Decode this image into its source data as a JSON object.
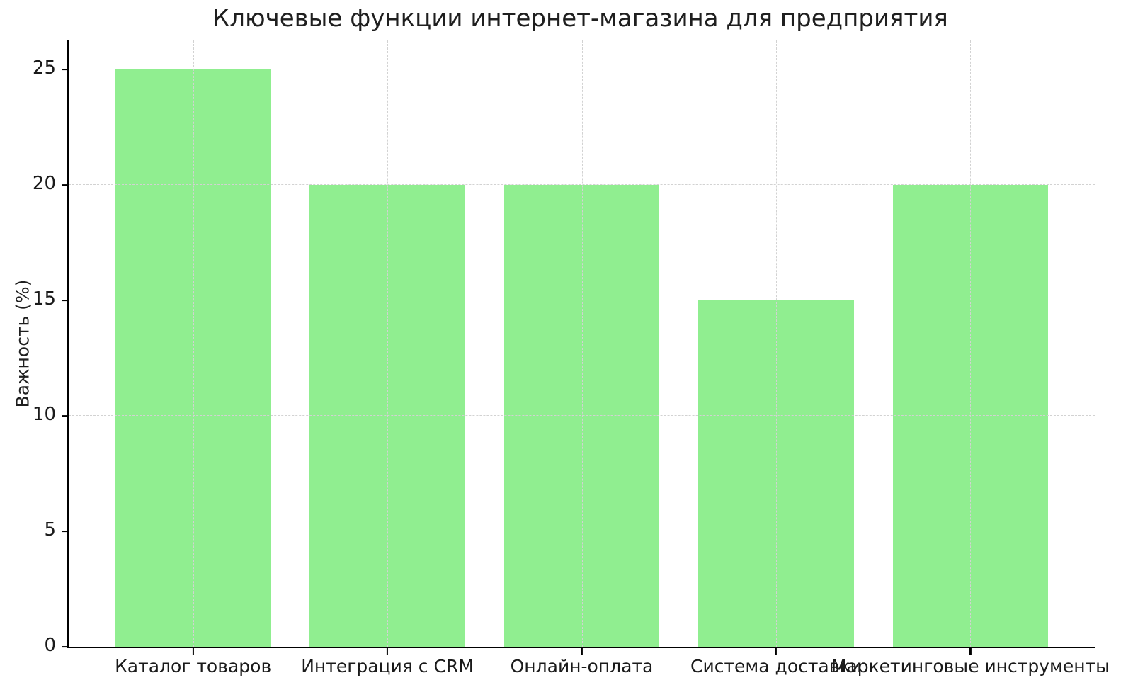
{
  "chart_data": {
    "type": "bar",
    "title": "Ключевые функции интернет-магазина для предприятия",
    "categories": [
      "Каталог товаров",
      "Интеграция с CRM",
      "Онлайн-оплата",
      "Система доставки",
      "Маркетинговые инструменты"
    ],
    "values": [
      25,
      20,
      20,
      15,
      20
    ],
    "xlabel": "",
    "ylabel": "Важность (%)",
    "yticks": [
      0,
      5,
      10,
      15,
      20,
      25
    ],
    "ylim": [
      0,
      26.25
    ],
    "xlim_units": [
      -0.64,
      4.64
    ],
    "bar_width_units": 0.8,
    "grid": true,
    "grid_style": "dashed",
    "grid_on_top_of_bars": true,
    "legend": false,
    "colors": {
      "bar": "#90EE90",
      "grid": "#d2d2d2",
      "axis": "#000000",
      "text": "#1a1a1a"
    }
  }
}
